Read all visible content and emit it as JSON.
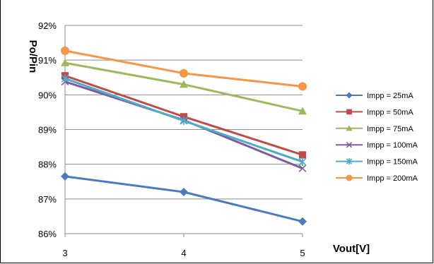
{
  "chart_data": {
    "type": "line",
    "title": "",
    "xlabel": "Vout[V]",
    "ylabel": "Po/Pin",
    "x": [
      3,
      4,
      5
    ],
    "x_ticks": [
      "3",
      "4",
      "5"
    ],
    "ylim": [
      86,
      92
    ],
    "y_ticks": [
      "86%",
      "87%",
      "88%",
      "89%",
      "90%",
      "91%",
      "92%"
    ],
    "grid": true,
    "legend_position": "right",
    "series": [
      {
        "name": "Impp = 25mA",
        "values": [
          87.65,
          87.2,
          86.35
        ],
        "color": "#4a7bbf",
        "marker": "diamond"
      },
      {
        "name": "Impp = 50mA",
        "values": [
          90.55,
          89.37,
          88.27
        ],
        "color": "#be4b48",
        "marker": "square"
      },
      {
        "name": "Impp = 75mA",
        "values": [
          90.92,
          90.3,
          89.53
        ],
        "color": "#9bbb59",
        "marker": "triangle"
      },
      {
        "name": "Impp = 100mA",
        "values": [
          90.38,
          89.27,
          87.88
        ],
        "color": "#7f5a9e",
        "marker": "x"
      },
      {
        "name": "Impp = 150mA",
        "values": [
          90.47,
          89.25,
          88.07
        ],
        "color": "#4bacc6",
        "marker": "star"
      },
      {
        "name": "Impp = 200mA",
        "values": [
          91.27,
          90.62,
          90.24
        ],
        "color": "#f79646",
        "marker": "circle"
      }
    ]
  }
}
